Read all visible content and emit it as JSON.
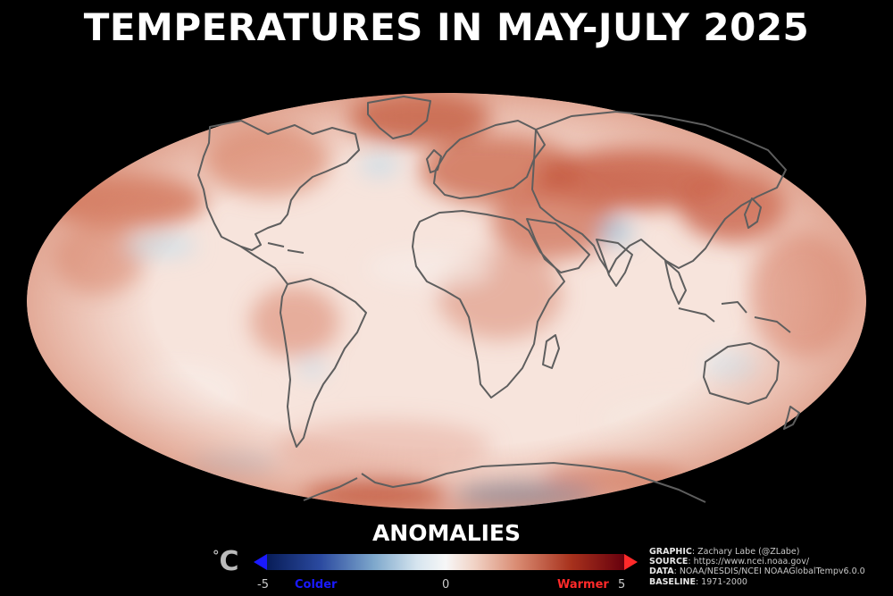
{
  "title": "TEMPERATURES IN MAY-JULY 2025",
  "legend": {
    "heading": "ANOMALIES",
    "unit": "°C",
    "unit_degree": "°",
    "unit_letter": "C",
    "min_label": "-5",
    "mid_label": "0",
    "max_label": "5",
    "cold_label": "Colder",
    "warm_label": "Warmer",
    "cold_color": "#1a1aff",
    "warm_color": "#ff2a2a",
    "scale": [
      -5,
      0,
      5
    ]
  },
  "credits": {
    "graphic_key": "GRAPHIC",
    "graphic_val": ": Zachary Labe (@ZLabe)",
    "source_key": "SOURCE",
    "source_val": ": https://www.ncei.noaa.gov/",
    "data_key": "DATA",
    "data_val": ": NOAA/NESDIS/NCEI NOAAGlobalTempv6.0.0",
    "baseline_key": "BASELINE",
    "baseline_val": ": 1971-2000"
  },
  "map": {
    "projection": "mollweide",
    "coastline_color": "#5e5e5e",
    "ocean_base_color": "#f6e6df"
  }
}
